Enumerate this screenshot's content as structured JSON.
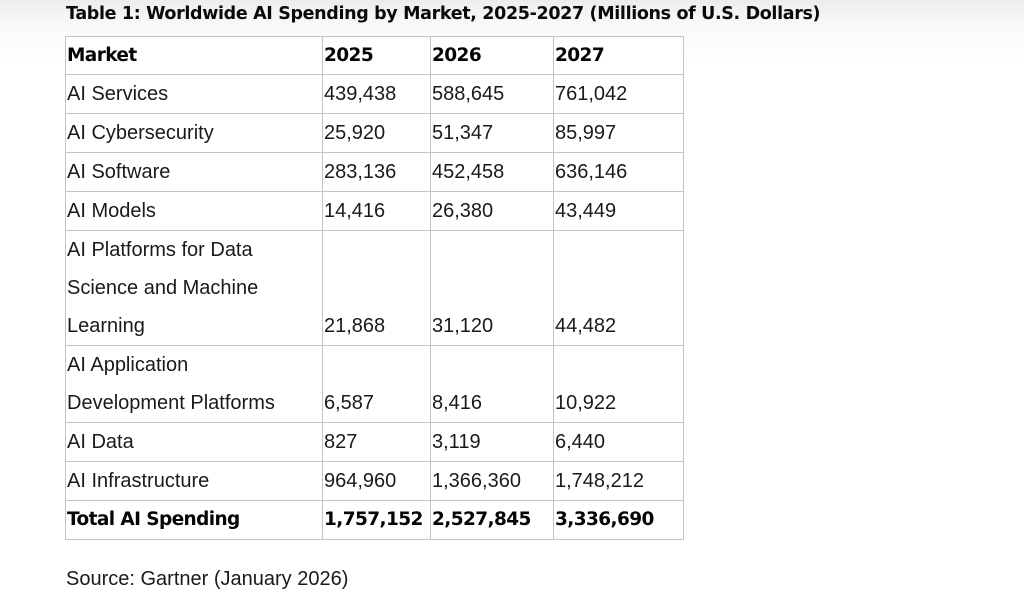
{
  "title": "Table 1: Worldwide AI Spending by Market, 2025-2027 (Millions of U.S. Dollars)",
  "table": {
    "headers": [
      "Market",
      "2025",
      "2026",
      "2027"
    ],
    "rows": [
      {
        "label_lines": [
          "AI Services"
        ],
        "values": [
          "439,438",
          "588,645",
          "761,042"
        ]
      },
      {
        "label_lines": [
          "AI Cybersecurity"
        ],
        "values": [
          "25,920",
          "51,347",
          "85,997"
        ]
      },
      {
        "label_lines": [
          "AI Software"
        ],
        "values": [
          "283,136",
          "452,458",
          "636,146"
        ]
      },
      {
        "label_lines": [
          "AI Models"
        ],
        "values": [
          "14,416",
          "26,380",
          "43,449"
        ]
      },
      {
        "label_lines": [
          "AI Platforms for Data",
          "Science and Machine",
          "Learning"
        ],
        "values": [
          "21,868",
          "31,120",
          "44,482"
        ]
      },
      {
        "label_lines": [
          "AI Application",
          "Development Platforms"
        ],
        "values": [
          "6,587",
          "8,416",
          "10,922"
        ]
      },
      {
        "label_lines": [
          "AI Data"
        ],
        "values": [
          "827",
          "3,119",
          "6,440"
        ]
      },
      {
        "label_lines": [
          "AI Infrastructure"
        ],
        "values": [
          "964,960",
          "1,366,360",
          "1,748,212"
        ]
      }
    ],
    "total": {
      "label": "Total AI Spending",
      "values": [
        "1,757,152",
        "2,527,845",
        "3,336,690"
      ]
    }
  },
  "source": "Source: Gartner (January 2026)"
}
